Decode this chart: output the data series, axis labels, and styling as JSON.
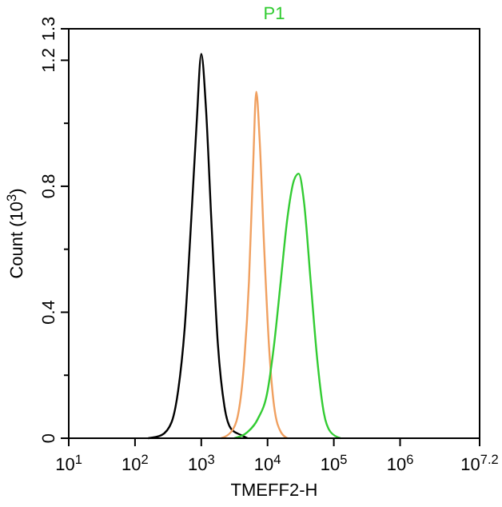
{
  "chart_data": {
    "type": "line",
    "title": "P1",
    "xlabel": "TMEFF2-H",
    "ylabel": "Count (10$^{3}$)",
    "log": "x",
    "xlim": [
      10,
      15848932
    ],
    "xticks": [
      {
        "value": 10,
        "label": "10$^{1}$"
      },
      {
        "value": 100,
        "label": "10$^{2}$"
      },
      {
        "value": 1000,
        "label": "10$^{3}$"
      },
      {
        "value": 10000,
        "label": "10$^{4}$"
      },
      {
        "value": 100000,
        "label": "10$^{5}$"
      },
      {
        "value": 1000000,
        "label": "10$^{6}$"
      },
      {
        "value": 15848932,
        "label": "10$^{7.2}$"
      }
    ],
    "ylim": [
      0,
      1.3
    ],
    "yticks": [
      0,
      {
        "value": 0.2,
        "label": null
      },
      0.4,
      {
        "value": 0.6,
        "label": null
      },
      0.8,
      {
        "value": 1.0,
        "label": null
      },
      1.2,
      1.3
    ],
    "grid": false,
    "marker": "none",
    "line_style": "solid",
    "series": [
      {
        "color": "#000000",
        "x": [
          158,
          251,
          355,
          447,
          562,
          708,
          851,
          1000,
          1175,
          1413,
          1778,
          2239,
          2818,
          3981,
          5012
        ],
        "values": [
          0,
          0.01,
          0.05,
          0.15,
          0.35,
          0.7,
          1.0,
          1.22,
          1.05,
          0.7,
          0.3,
          0.1,
          0.03,
          0.01,
          0
        ]
      },
      {
        "color": "#f0a060",
        "x": [
          1995,
          2818,
          3548,
          4467,
          5248,
          6026,
          6761,
          7586,
          8913,
          10471,
          12589,
          15849,
          19953
        ],
        "values": [
          0,
          0.02,
          0.07,
          0.25,
          0.5,
          0.85,
          1.1,
          0.95,
          0.6,
          0.3,
          0.1,
          0.02,
          0
        ]
      },
      {
        "color": "#33cc33",
        "x": [
          3162,
          5012,
          7079,
          10000,
          12589,
          15849,
          19953,
          25119,
          29512,
          35481,
          44668,
          56234,
          70795,
          89125,
          125893
        ],
        "values": [
          0,
          0.02,
          0.06,
          0.15,
          0.3,
          0.5,
          0.7,
          0.82,
          0.84,
          0.75,
          0.5,
          0.25,
          0.08,
          0.02,
          0
        ]
      }
    ]
  }
}
